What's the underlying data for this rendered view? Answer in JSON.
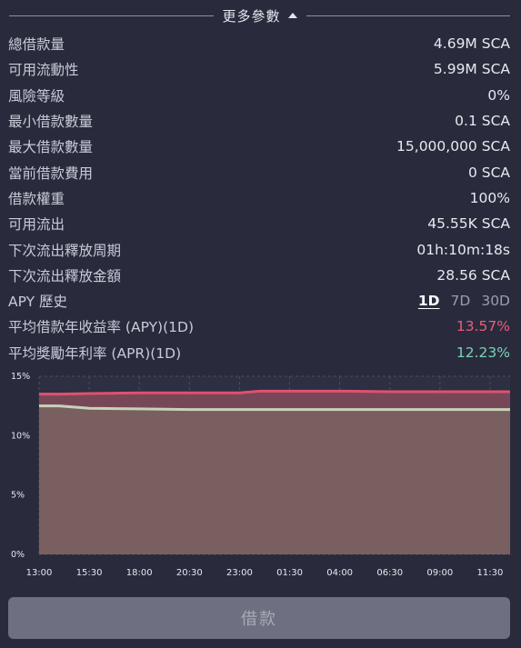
{
  "header": {
    "title": "更多參數"
  },
  "params": [
    {
      "label": "總借款量",
      "value": "4.69M SCA"
    },
    {
      "label": "可用流動性",
      "value": "5.99M SCA"
    },
    {
      "label": "風險等級",
      "value": "0%"
    },
    {
      "label": "最小借款數量",
      "value": "0.1 SCA"
    },
    {
      "label": "最大借款數量",
      "value": "15,000,000 SCA"
    },
    {
      "label": "當前借款費用",
      "value": "0 SCA"
    },
    {
      "label": "借款權重",
      "value": "100%"
    },
    {
      "label": "可用流出",
      "value": "45.55K SCA"
    },
    {
      "label": "下次流出釋放周期",
      "value": "01h:10m:18s"
    },
    {
      "label": "下次流出釋放金額",
      "value": "28.56 SCA"
    }
  ],
  "apy_history": {
    "label": "APY 歷史",
    "periods": [
      "1D",
      "7D",
      "30D"
    ],
    "active": "1D"
  },
  "avg_borrow_apy": {
    "label": "平均借款年收益率 (APY)(1D)",
    "value": "13.57%",
    "color": "#ec5d78"
  },
  "avg_reward_apr": {
    "label": "平均獎勵年利率 (APR)(1D)",
    "value": "12.23%",
    "color": "#79d3b5"
  },
  "chart_data": {
    "type": "area",
    "x": [
      "13:00",
      "14:00",
      "15:30",
      "18:00",
      "20:30",
      "23:00",
      "00:00",
      "01:30",
      "04:00",
      "06:30",
      "09:00",
      "11:30",
      "12:30"
    ],
    "xticks": [
      "13:00",
      "15:30",
      "18:00",
      "20:30",
      "23:00",
      "01:30",
      "04:00",
      "06:30",
      "09:00",
      "11:30"
    ],
    "yticks": [
      "15%",
      "10%",
      "5%",
      "0%"
    ],
    "ylim": [
      0,
      15
    ],
    "series": [
      {
        "values": [
          13.5,
          13.5,
          13.55,
          13.6,
          13.6,
          13.6,
          13.75,
          13.75,
          13.75,
          13.7,
          13.7,
          13.7,
          13.7
        ],
        "color": "#e2506e"
      },
      {
        "values": [
          12.5,
          12.5,
          12.3,
          12.25,
          12.2,
          12.2,
          12.2,
          12.2,
          12.2,
          12.2,
          12.2,
          12.2,
          12.2
        ],
        "color": "#c8d2b8"
      }
    ]
  },
  "borrow_button": {
    "label": "借款"
  }
}
